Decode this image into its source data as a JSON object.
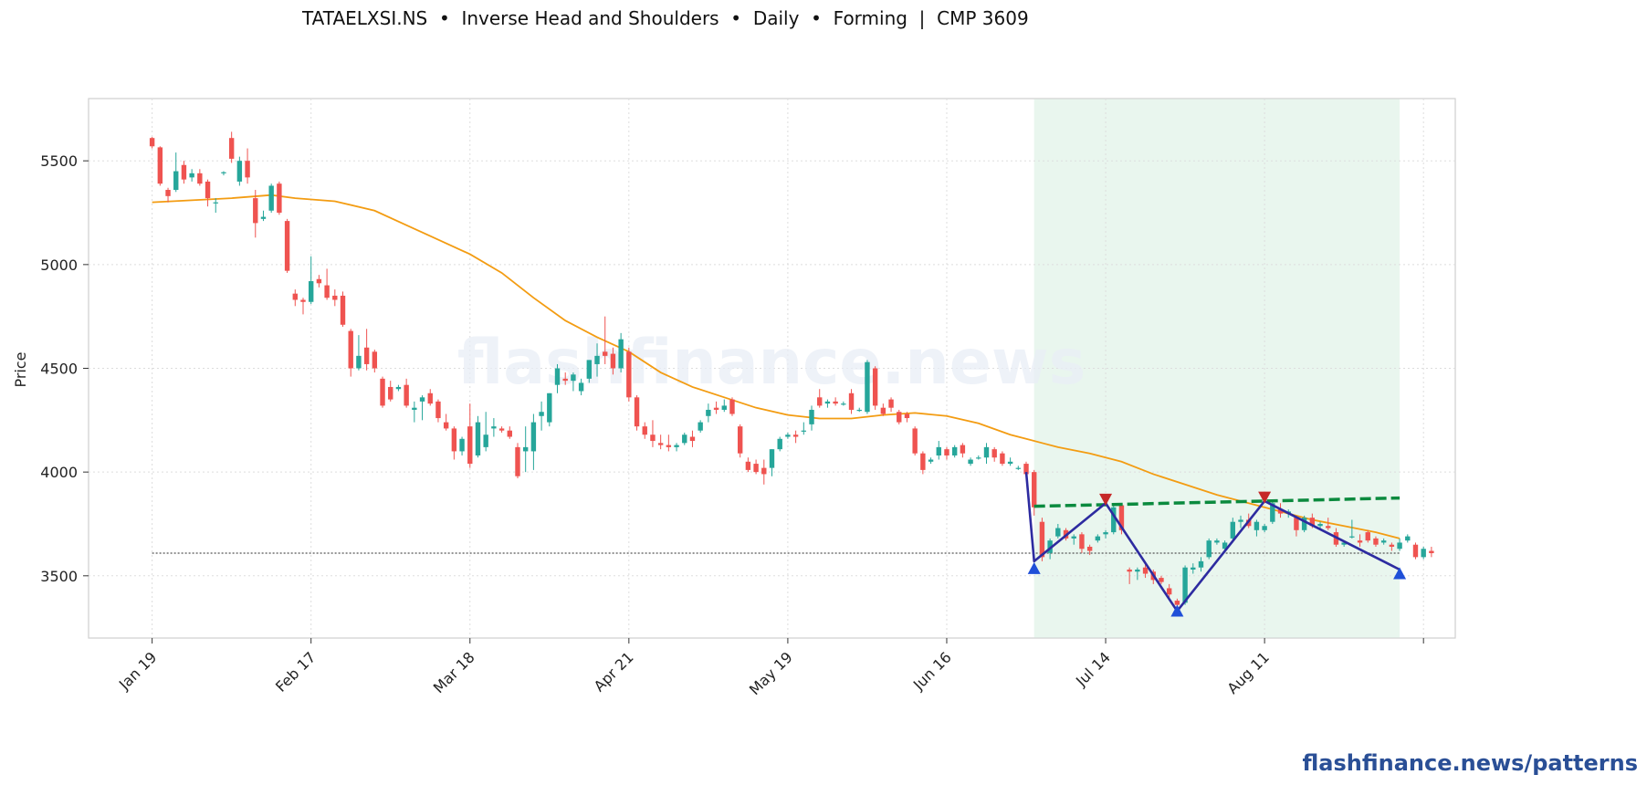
{
  "header": {
    "title": "TATAELXSI.NS  •  Inverse Head and Shoulders  •  Daily  •  Forming  |  CMP 3609"
  },
  "footer": {
    "link": "flashfinance.news/patterns"
  },
  "watermark": "flashfinance.news",
  "colors": {
    "up": "#26a69a",
    "down": "#ef5350",
    "ma": "#f39c12",
    "neckline": "#0b8a3e",
    "pattern": "#2d2ba0",
    "marker_low": "#1f4fd8",
    "marker_high": "#c62828",
    "zone": "#e4f4ea",
    "cmp_line": "#555555"
  },
  "chart_data": {
    "type": "candlestick",
    "ylabel": "Price",
    "xlabel": "",
    "ylim": [
      3200,
      5800
    ],
    "y_ticks": [
      3500,
      4000,
      4500,
      5000,
      5500
    ],
    "x_ticks": [
      {
        "label": "Jan 19",
        "index": 0
      },
      {
        "label": "Feb 17",
        "index": 20
      },
      {
        "label": "Mar 18",
        "index": 40
      },
      {
        "label": "Apr 21",
        "index": 60
      },
      {
        "label": "May 19",
        "index": 80
      },
      {
        "label": "Jun 16",
        "index": 100
      },
      {
        "label": "Jul 14",
        "index": 120
      },
      {
        "label": "Aug 11",
        "index": 140
      },
      {
        "label": "",
        "index": 160
      }
    ],
    "x_range": [
      -8,
      164
    ],
    "grid": true,
    "candles": [
      [
        5610,
        5615,
        5560,
        5570
      ],
      [
        5565,
        5570,
        5380,
        5390
      ],
      [
        5360,
        5370,
        5300,
        5330
      ],
      [
        5360,
        5540,
        5350,
        5450
      ],
      [
        5480,
        5500,
        5390,
        5410
      ],
      [
        5420,
        5460,
        5400,
        5440
      ],
      [
        5440,
        5460,
        5380,
        5390
      ],
      [
        5400,
        5410,
        5280,
        5320
      ],
      [
        5300,
        5320,
        5250,
        5300
      ],
      [
        5440,
        5450,
        5430,
        5445
      ],
      [
        5610,
        5640,
        5490,
        5510
      ],
      [
        5400,
        5520,
        5380,
        5500
      ],
      [
        5500,
        5560,
        5390,
        5420
      ],
      [
        5320,
        5360,
        5130,
        5200
      ],
      [
        5220,
        5260,
        5210,
        5230
      ],
      [
        5260,
        5390,
        5250,
        5380
      ],
      [
        5390,
        5400,
        5240,
        5250
      ],
      [
        5210,
        5220,
        4960,
        4970
      ],
      [
        4860,
        4880,
        4800,
        4830
      ],
      [
        4830,
        4840,
        4760,
        4820
      ],
      [
        4820,
        5040,
        4810,
        4920
      ],
      [
        4930,
        4950,
        4890,
        4910
      ],
      [
        4900,
        4980,
        4830,
        4840
      ],
      [
        4850,
        4880,
        4800,
        4830
      ],
      [
        4850,
        4870,
        4700,
        4710
      ],
      [
        4680,
        4690,
        4460,
        4500
      ],
      [
        4500,
        4660,
        4490,
        4560
      ],
      [
        4600,
        4690,
        4490,
        4520
      ],
      [
        4580,
        4590,
        4480,
        4500
      ],
      [
        4450,
        4460,
        4310,
        4320
      ],
      [
        4410,
        4440,
        4340,
        4350
      ],
      [
        4400,
        4420,
        4390,
        4410
      ],
      [
        4420,
        4450,
        4310,
        4320
      ],
      [
        4300,
        4340,
        4240,
        4310
      ],
      [
        4340,
        4370,
        4250,
        4360
      ],
      [
        4380,
        4400,
        4320,
        4330
      ],
      [
        4340,
        4350,
        4240,
        4260
      ],
      [
        4240,
        4280,
        4200,
        4210
      ],
      [
        4210,
        4220,
        4060,
        4100
      ],
      [
        4100,
        4170,
        4080,
        4160
      ],
      [
        4220,
        4330,
        4020,
        4040
      ],
      [
        4080,
        4270,
        4070,
        4240
      ],
      [
        4120,
        4290,
        4100,
        4180
      ],
      [
        4210,
        4260,
        4170,
        4220
      ],
      [
        4210,
        4220,
        4190,
        4200
      ],
      [
        4200,
        4220,
        4160,
        4170
      ],
      [
        4120,
        4140,
        3970,
        3980
      ],
      [
        4100,
        4220,
        4000,
        4120
      ],
      [
        4100,
        4280,
        4010,
        4240
      ],
      [
        4270,
        4340,
        4200,
        4290
      ],
      [
        4240,
        4380,
        4220,
        4380
      ],
      [
        4420,
        4520,
        4380,
        4500
      ],
      [
        4450,
        4480,
        4420,
        4440
      ],
      [
        4440,
        4480,
        4390,
        4470
      ],
      [
        4390,
        4450,
        4370,
        4430
      ],
      [
        4450,
        4540,
        4430,
        4540
      ],
      [
        4520,
        4620,
        4460,
        4560
      ],
      [
        4580,
        4750,
        4520,
        4560
      ],
      [
        4570,
        4600,
        4470,
        4500
      ],
      [
        4500,
        4670,
        4480,
        4640
      ],
      [
        4580,
        4600,
        4340,
        4360
      ],
      [
        4360,
        4370,
        4200,
        4220
      ],
      [
        4220,
        4240,
        4160,
        4180
      ],
      [
        4180,
        4250,
        4120,
        4150
      ],
      [
        4140,
        4180,
        4110,
        4130
      ],
      [
        4130,
        4180,
        4100,
        4120
      ],
      [
        4120,
        4140,
        4100,
        4130
      ],
      [
        4140,
        4190,
        4130,
        4180
      ],
      [
        4170,
        4200,
        4120,
        4150
      ],
      [
        4200,
        4250,
        4190,
        4240
      ],
      [
        4270,
        4330,
        4240,
        4300
      ],
      [
        4310,
        4340,
        4280,
        4300
      ],
      [
        4300,
        4350,
        4290,
        4320
      ],
      [
        4350,
        4360,
        4270,
        4280
      ],
      [
        4220,
        4230,
        4070,
        4090
      ],
      [
        4050,
        4070,
        4000,
        4010
      ],
      [
        4040,
        4060,
        3990,
        4000
      ],
      [
        4020,
        4060,
        3940,
        3990
      ],
      [
        4020,
        4110,
        3980,
        4110
      ],
      [
        4110,
        4170,
        4100,
        4160
      ],
      [
        4170,
        4190,
        4160,
        4180
      ],
      [
        4180,
        4200,
        4140,
        4170
      ],
      [
        4200,
        4240,
        4180,
        4200
      ],
      [
        4230,
        4320,
        4200,
        4300
      ],
      [
        4360,
        4400,
        4310,
        4320
      ],
      [
        4330,
        4350,
        4310,
        4340
      ],
      [
        4340,
        4360,
        4320,
        4330
      ],
      [
        4330,
        4340,
        4320,
        4330
      ],
      [
        4380,
        4400,
        4280,
        4300
      ],
      [
        4300,
        4310,
        4290,
        4300
      ],
      [
        4290,
        4540,
        4280,
        4530
      ],
      [
        4500,
        4510,
        4300,
        4320
      ],
      [
        4310,
        4330,
        4270,
        4280
      ],
      [
        4350,
        4360,
        4290,
        4310
      ],
      [
        4290,
        4300,
        4230,
        4240
      ],
      [
        4280,
        4290,
        4240,
        4260
      ],
      [
        4210,
        4220,
        4080,
        4090
      ],
      [
        4090,
        4100,
        3990,
        4010
      ],
      [
        4050,
        4070,
        4040,
        4060
      ],
      [
        4080,
        4150,
        4060,
        4120
      ],
      [
        4110,
        4120,
        4060,
        4080
      ],
      [
        4080,
        4130,
        4070,
        4120
      ],
      [
        4130,
        4140,
        4070,
        4090
      ],
      [
        4040,
        4070,
        4030,
        4060
      ],
      [
        4070,
        4080,
        4060,
        4070
      ],
      [
        4070,
        4140,
        4040,
        4120
      ],
      [
        4110,
        4120,
        4050,
        4070
      ],
      [
        4090,
        4100,
        4030,
        4040
      ],
      [
        4040,
        4070,
        4030,
        4050
      ],
      [
        4020,
        4030,
        4010,
        4020
      ],
      [
        4040,
        4050,
        3980,
        3990
      ],
      [
        4000,
        4010,
        3790,
        3830
      ],
      [
        3760,
        3780,
        3570,
        3590
      ],
      [
        3610,
        3680,
        3580,
        3670
      ],
      [
        3690,
        3750,
        3680,
        3730
      ],
      [
        3720,
        3730,
        3670,
        3680
      ],
      [
        3680,
        3700,
        3650,
        3690
      ],
      [
        3700,
        3710,
        3610,
        3630
      ],
      [
        3640,
        3650,
        3600,
        3620
      ],
      [
        3670,
        3700,
        3660,
        3690
      ],
      [
        3700,
        3720,
        3680,
        3710
      ],
      [
        3710,
        3850,
        3700,
        3830
      ],
      [
        3840,
        3850,
        3700,
        3720
      ],
      [
        3530,
        3540,
        3460,
        3520
      ],
      [
        3520,
        3540,
        3480,
        3530
      ],
      [
        3540,
        3560,
        3490,
        3510
      ],
      [
        3520,
        3530,
        3460,
        3480
      ],
      [
        3490,
        3500,
        3460,
        3470
      ],
      [
        3440,
        3460,
        3390,
        3410
      ],
      [
        3380,
        3390,
        3350,
        3360
      ],
      [
        3370,
        3550,
        3360,
        3540
      ],
      [
        3530,
        3560,
        3510,
        3540
      ],
      [
        3540,
        3590,
        3520,
        3570
      ],
      [
        3590,
        3680,
        3580,
        3670
      ],
      [
        3660,
        3680,
        3650,
        3670
      ],
      [
        3630,
        3670,
        3620,
        3660
      ],
      [
        3680,
        3780,
        3660,
        3760
      ],
      [
        3760,
        3790,
        3730,
        3770
      ],
      [
        3770,
        3800,
        3730,
        3740
      ],
      [
        3720,
        3770,
        3690,
        3760
      ],
      [
        3720,
        3750,
        3710,
        3740
      ],
      [
        3760,
        3860,
        3750,
        3850
      ],
      [
        3820,
        3850,
        3780,
        3800
      ],
      [
        3800,
        3820,
        3780,
        3810
      ],
      [
        3780,
        3790,
        3690,
        3720
      ],
      [
        3720,
        3790,
        3710,
        3780
      ],
      [
        3780,
        3800,
        3730,
        3740
      ],
      [
        3740,
        3760,
        3730,
        3750
      ],
      [
        3740,
        3780,
        3720,
        3730
      ],
      [
        3710,
        3730,
        3640,
        3650
      ],
      [
        3650,
        3670,
        3640,
        3660
      ],
      [
        3690,
        3770,
        3680,
        3690
      ],
      [
        3670,
        3700,
        3640,
        3660
      ],
      [
        3710,
        3720,
        3660,
        3670
      ],
      [
        3680,
        3690,
        3640,
        3650
      ],
      [
        3660,
        3680,
        3650,
        3670
      ],
      [
        3650,
        3660,
        3620,
        3640
      ],
      [
        3630,
        3680,
        3620,
        3660
      ],
      [
        3670,
        3700,
        3660,
        3690
      ],
      [
        3650,
        3660,
        3580,
        3590
      ],
      [
        3590,
        3640,
        3580,
        3630
      ],
      [
        3620,
        3640,
        3590,
        3609
      ]
    ],
    "moving_average": [
      [
        0,
        5300
      ],
      [
        5,
        5310
      ],
      [
        10,
        5320
      ],
      [
        15,
        5335
      ],
      [
        18,
        5320
      ],
      [
        23,
        5305
      ],
      [
        28,
        5260
      ],
      [
        32,
        5190
      ],
      [
        36,
        5120
      ],
      [
        40,
        5050
      ],
      [
        44,
        4960
      ],
      [
        48,
        4840
      ],
      [
        52,
        4730
      ],
      [
        56,
        4650
      ],
      [
        60,
        4580
      ],
      [
        64,
        4480
      ],
      [
        68,
        4410
      ],
      [
        72,
        4360
      ],
      [
        76,
        4310
      ],
      [
        80,
        4275
      ],
      [
        84,
        4258
      ],
      [
        88,
        4258
      ],
      [
        92,
        4275
      ],
      [
        96,
        4285
      ],
      [
        100,
        4270
      ],
      [
        104,
        4235
      ],
      [
        108,
        4180
      ],
      [
        110,
        4160
      ],
      [
        114,
        4120
      ],
      [
        118,
        4090
      ],
      [
        122,
        4050
      ],
      [
        126,
        3990
      ],
      [
        130,
        3940
      ],
      [
        134,
        3890
      ],
      [
        138,
        3850
      ],
      [
        142,
        3810
      ],
      [
        146,
        3770
      ],
      [
        150,
        3740
      ],
      [
        154,
        3710
      ],
      [
        157,
        3680
      ]
    ],
    "pattern_zone": {
      "x_start": 111,
      "x_end": 157
    },
    "pattern_line": [
      [
        110,
        4000
      ],
      [
        111,
        3570
      ],
      [
        120,
        3850
      ],
      [
        129,
        3330
      ],
      [
        140,
        3860
      ],
      [
        157,
        3530
      ]
    ],
    "neckline": [
      [
        111,
        3835
      ],
      [
        157,
        3875
      ]
    ],
    "markers_low": [
      [
        111,
        3535
      ],
      [
        129,
        3330
      ],
      [
        157,
        3510
      ]
    ],
    "markers_high": [
      [
        120,
        3865
      ],
      [
        140,
        3875
      ]
    ],
    "cmp": {
      "value": 3609,
      "x_start": 0,
      "x_end": 157
    }
  }
}
